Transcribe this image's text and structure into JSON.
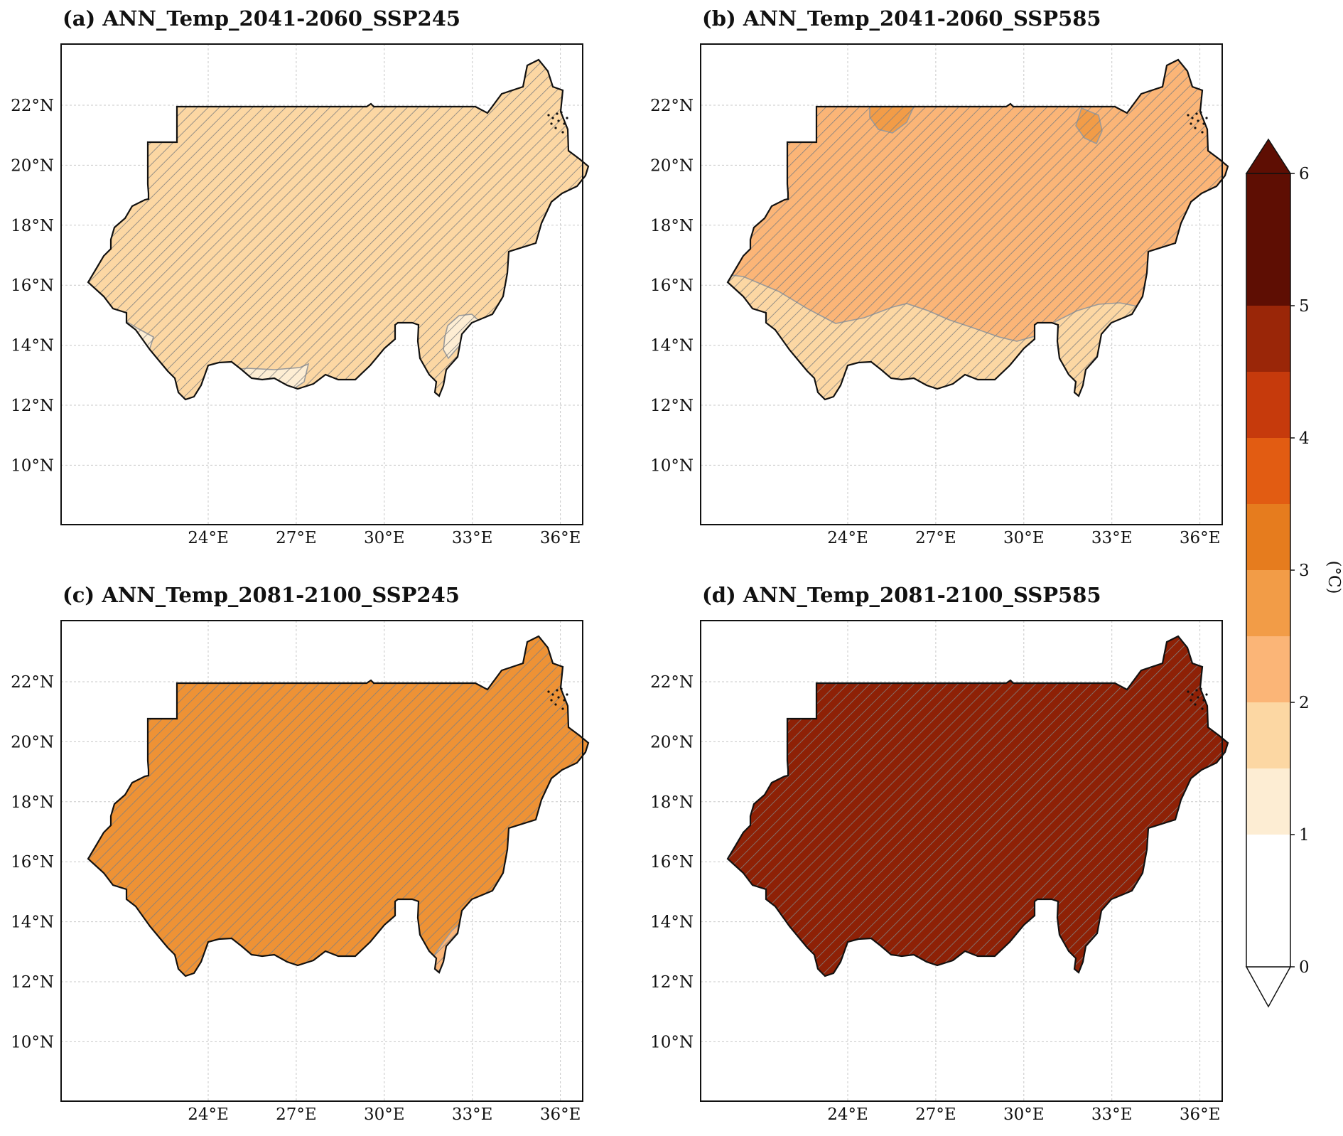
{
  "panels": [
    {
      "title": "(a) ANN_Temp_2041-2060_SSP245",
      "base_color": "#FCD7A3",
      "base_level": "1.5-2",
      "patches": [
        {
          "color": "#FDEDD3",
          "level": "1-1.5",
          "where": "southwest"
        },
        {
          "color": "#FDEDD3",
          "level": "1-1.5",
          "where": "south-central"
        },
        {
          "color": "#FDEDD3",
          "level": "1-1.5",
          "where": "southeast"
        }
      ]
    },
    {
      "title": "(b) ANN_Temp_2041-2060_SSP585",
      "base_color": "#FBB577",
      "base_level": "2-2.5",
      "patches": [
        {
          "color": "#FCD7A3",
          "level": "1.5-2",
          "where": "south"
        },
        {
          "color": "#F29C47",
          "level": "2.5-3",
          "where": "north"
        },
        {
          "color": "#F29C47",
          "level": "2.5-3",
          "where": "northeast"
        }
      ]
    },
    {
      "title": "(c) ANN_Temp_2081-2100_SSP245",
      "base_color": "#EE9235",
      "base_level": "2.5-3",
      "patches": [
        {
          "color": "#FBB577",
          "level": "2-2.5",
          "where": "southeast"
        }
      ]
    },
    {
      "title": "(d) ANN_Temp_2081-2100_SSP585",
      "base_color": "#8E2106",
      "base_level": "4.5-5",
      "patches": []
    }
  ],
  "axes": {
    "lat_labels": [
      "22°N",
      "20°N",
      "18°N",
      "16°N",
      "14°N",
      "12°N",
      "10°N"
    ],
    "lon_labels": [
      "24°E",
      "27°E",
      "30°E",
      "33°E",
      "36°E"
    ]
  },
  "colorbar": {
    "unit_label": "(°C)",
    "tick_labels": [
      "0",
      "1",
      "2",
      "3",
      "4",
      "5",
      "6"
    ],
    "bins": [
      {
        "range": "0-1",
        "color": "#FFFFFF"
      },
      {
        "range": "1-1.5",
        "color": "#FDEDD3"
      },
      {
        "range": "1.5-2",
        "color": "#FCD7A3"
      },
      {
        "range": "2-2.5",
        "color": "#FBB577"
      },
      {
        "range": "2.5-3",
        "color": "#F29C47"
      },
      {
        "range": "3-3.5",
        "color": "#E67C1E"
      },
      {
        "range": "3.5-4",
        "color": "#E25C12"
      },
      {
        "range": "4-4.5",
        "color": "#C63A0C"
      },
      {
        "range": "4.5-5",
        "color": "#9A2608"
      },
      {
        "range": ">5",
        "color": "#5E0E03"
      }
    ]
  },
  "hatch_color": "#808080"
}
